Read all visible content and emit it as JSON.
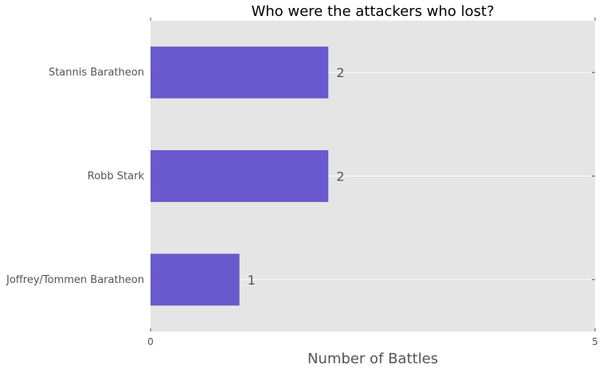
{
  "chart_data": {
    "type": "bar",
    "orientation": "horizontal",
    "title": "Who were the attackers who lost?",
    "xlabel": "Number of Battles",
    "ylabel": "",
    "categories": [
      "Stannis Baratheon",
      "Robb Stark",
      "Joffrey/Tommen Baratheon"
    ],
    "values": [
      2,
      2,
      1
    ],
    "data_labels": [
      "2",
      "2",
      "1"
    ],
    "xlim": [
      0,
      5
    ],
    "xticks": [
      "0",
      "5"
    ],
    "grid": true,
    "bar_color": "#6a5acd",
    "background_color": "#e5e5e5"
  }
}
